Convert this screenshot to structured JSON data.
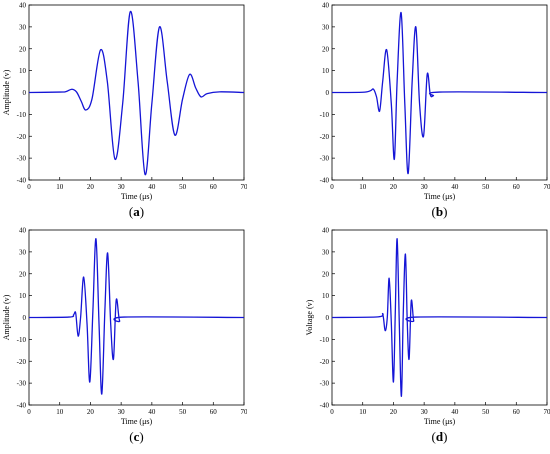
{
  "chart_data": [
    {
      "id": "a",
      "type": "line",
      "caption": "(a)",
      "caption_letter": "a",
      "xlabel": "Time (μs)",
      "ylabel": "Amplitude (v)",
      "xlim": [
        0,
        70
      ],
      "ylim": [
        -40,
        40
      ],
      "xticks": [
        0,
        10,
        20,
        30,
        40,
        50,
        60,
        70
      ],
      "yticks": [
        -40,
        -30,
        -20,
        -10,
        0,
        10,
        20,
        30,
        40
      ],
      "color": "#1515d6",
      "series": [
        {
          "x": [
            0,
            10,
            12,
            14,
            15.5,
            17,
            18.5,
            20.5,
            23.3,
            25.5,
            28,
            30.5,
            33,
            35.5,
            37.8,
            40,
            42.5,
            45,
            47.5,
            50,
            52.3,
            54.3,
            56,
            58,
            62,
            70
          ],
          "y": [
            0,
            0.2,
            0.4,
            1.5,
            0.2,
            -4,
            -8,
            -3,
            19.5,
            5,
            -30.5,
            -5,
            37,
            5,
            -37.5,
            -5,
            30,
            5,
            -19.5,
            -3,
            8.3,
            2,
            -2,
            -0.5,
            0.3,
            0
          ]
        }
      ]
    },
    {
      "id": "b",
      "type": "line",
      "caption": "(b)",
      "caption_letter": "b",
      "xlabel": "Time (μs)",
      "ylabel": "",
      "xlim": [
        0,
        70
      ],
      "ylim": [
        -40,
        40
      ],
      "xticks": [
        0,
        10,
        20,
        30,
        40,
        50,
        60,
        70
      ],
      "yticks": [
        -40,
        -30,
        -20,
        -10,
        0,
        10,
        20,
        30,
        40
      ],
      "color": "#1515d6",
      "series": [
        {
          "x": [
            0,
            10,
            12.5,
            13.5,
            14.5,
            15.5,
            16.5,
            17.8,
            19.3,
            20.3,
            21.2,
            22.5,
            23.7,
            24.8,
            26.1,
            27.3,
            28.5,
            29.8,
            31,
            32,
            33,
            35,
            70
          ],
          "y": [
            0,
            0.1,
            0.8,
            1.5,
            -2,
            -8.5,
            5,
            19.5,
            -5,
            -30.5,
            5,
            36.5,
            -5,
            -37,
            5,
            30,
            -5,
            -20,
            8.3,
            -1,
            -1.5,
            0.2,
            0
          ]
        }
      ]
    },
    {
      "id": "c",
      "type": "line",
      "caption": "(c)",
      "caption_letter": "c",
      "xlabel": "Time (μs)",
      "ylabel": "Amplitude (v)",
      "xlim": [
        0,
        70
      ],
      "ylim": [
        -40,
        40
      ],
      "xticks": [
        0,
        10,
        20,
        30,
        40,
        50,
        60,
        70
      ],
      "yticks": [
        -40,
        -30,
        -20,
        -10,
        0,
        10,
        20,
        30,
        40
      ],
      "color": "#1515d6",
      "series": [
        {
          "x": [
            0,
            13,
            14.5,
            15.2,
            16,
            16.8,
            17.8,
            18.9,
            19.8,
            20.8,
            21.8,
            22.8,
            23.7,
            24.7,
            25.6,
            26.6,
            27.5,
            28.4,
            29.5,
            31,
            70
          ],
          "y": [
            0,
            0.2,
            1.2,
            2,
            -8.5,
            0,
            18.5,
            -3,
            -29.5,
            3,
            36,
            -3,
            -35,
            3,
            29.5,
            -3,
            -19,
            8,
            -1.5,
            0.2,
            0
          ]
        }
      ]
    },
    {
      "id": "d",
      "type": "line",
      "caption": "(d)",
      "caption_letter": "d",
      "xlabel": "Time (μs)",
      "ylabel": "Voltage (v)",
      "xlim": [
        0,
        70
      ],
      "ylim": [
        -40,
        40
      ],
      "xticks": [
        0,
        10,
        20,
        30,
        40,
        50,
        60,
        70
      ],
      "yticks": [
        -40,
        -30,
        -20,
        -10,
        0,
        10,
        20,
        30,
        40
      ],
      "color": "#1515d6",
      "series": [
        {
          "x": [
            0,
            15,
            16.5,
            17.3,
            18,
            18.6,
            19.3,
            20,
            20.6,
            21.2,
            21.9,
            22.6,
            23.2,
            23.9,
            24.5,
            25.1,
            25.8,
            26.6,
            27.5,
            70
          ],
          "y": [
            0,
            0.3,
            1.5,
            -6,
            0,
            18,
            -2,
            -29.5,
            2,
            36,
            -2,
            -36,
            2,
            29,
            -2,
            -19,
            7.5,
            -1.5,
            0.2,
            0
          ]
        }
      ]
    }
  ]
}
